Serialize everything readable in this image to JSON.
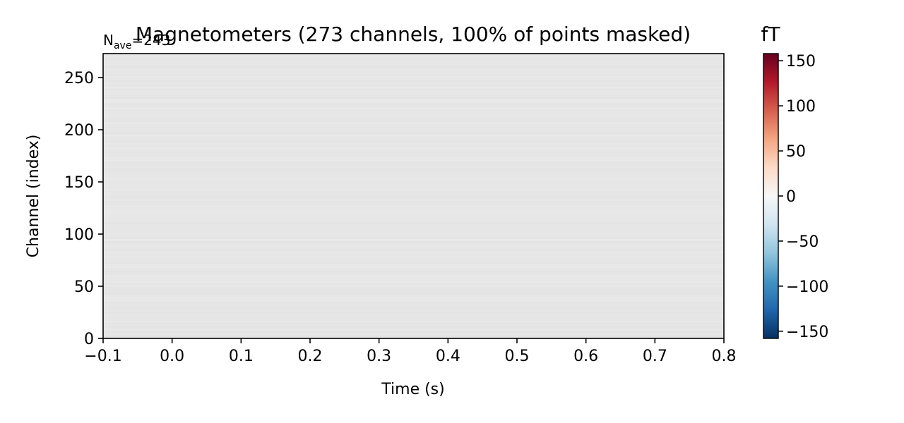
{
  "chart_data": {
    "type": "heatmap",
    "title": "Magnetometers (273 channels, 100% of points masked)",
    "nave_label": {
      "n": "N",
      "sub": "ave",
      "value": "=243"
    },
    "xlabel": "Time (s)",
    "ylabel": "Channel (index)",
    "xlim": [
      -0.1,
      0.8
    ],
    "ylim": [
      0,
      273
    ],
    "x_ticks": [
      -0.1,
      0.0,
      0.1,
      0.2,
      0.3,
      0.4,
      0.5,
      0.6,
      0.7,
      0.8
    ],
    "x_tick_labels": [
      "−0.1",
      "0.0",
      "0.1",
      "0.2",
      "0.3",
      "0.4",
      "0.5",
      "0.6",
      "0.7",
      "0.8"
    ],
    "y_ticks": [
      0,
      50,
      100,
      150,
      200,
      250
    ],
    "y_tick_labels": [
      "0",
      "50",
      "100",
      "150",
      "200",
      "250"
    ],
    "colorbar": {
      "label": "fT",
      "colormap": "RdBu_r",
      "vmin": -158,
      "vmax": 158,
      "ticks": [
        150,
        100,
        50,
        0,
        -50,
        -100,
        -150
      ],
      "tick_labels": [
        "150",
        "100",
        "50",
        "0",
        "−50",
        "−100",
        "−150"
      ]
    },
    "masked": true,
    "mask_color": "#e6e6e6",
    "grid": false
  }
}
